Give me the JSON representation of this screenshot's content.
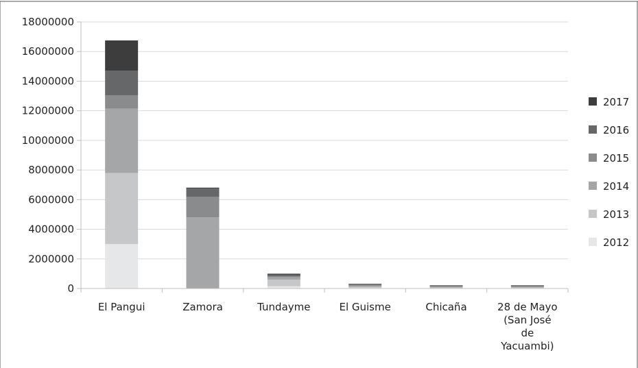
{
  "chart_data": {
    "type": "bar",
    "stacked": true,
    "categories": [
      "El Pangui",
      "Zamora",
      "Tundayme",
      "El Guisme",
      "Chicaña",
      "28 de Mayo (San José de Yacuambi)"
    ],
    "category_label_lines": [
      [
        "El Pangui"
      ],
      [
        "Zamora"
      ],
      [
        "Tundayme"
      ],
      [
        "El Guisme"
      ],
      [
        "Chicaña"
      ],
      [
        "28 de Mayo",
        "(San José",
        "de",
        "Yacuambi)"
      ]
    ],
    "series": [
      {
        "name": "2012",
        "color": "#e6e7e8",
        "values": [
          3000000,
          0,
          150000,
          50000,
          30000,
          30000
        ]
      },
      {
        "name": "2013",
        "color": "#c6c7c8",
        "values": [
          4800000,
          0,
          450000,
          50000,
          30000,
          30000
        ]
      },
      {
        "name": "2014",
        "color": "#a5a6a8",
        "values": [
          4350000,
          4800000,
          150000,
          80000,
          50000,
          50000
        ]
      },
      {
        "name": "2015",
        "color": "#8a8b8d",
        "values": [
          900000,
          1400000,
          80000,
          60000,
          40000,
          40000
        ]
      },
      {
        "name": "2016",
        "color": "#666768",
        "values": [
          1650000,
          550000,
          100000,
          50000,
          40000,
          40000
        ]
      },
      {
        "name": "2017",
        "color": "#3d3d3e",
        "values": [
          2050000,
          60000,
          70000,
          30000,
          30000,
          30000
        ]
      }
    ],
    "y_ticks": [
      "0",
      "2000000",
      "4000000",
      "6000000",
      "8000000",
      "10000000",
      "12000000",
      "14000000",
      "16000000",
      "18000000"
    ],
    "ylim": [
      0,
      18000000
    ],
    "grid": true,
    "legend_position": "right"
  }
}
